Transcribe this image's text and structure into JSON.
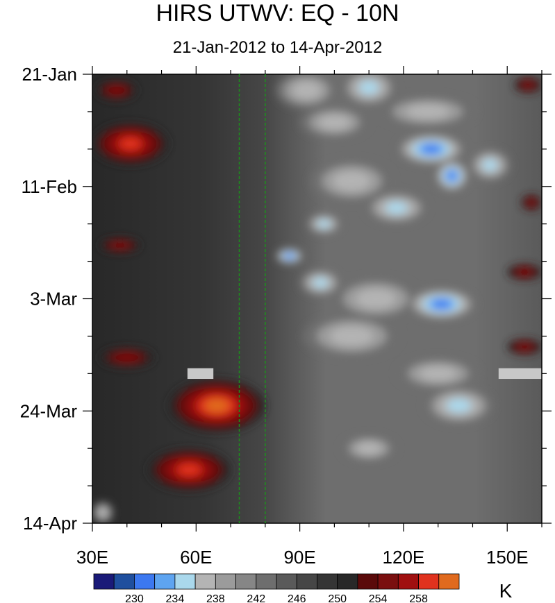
{
  "chart_data": {
    "type": "heatmap",
    "title": "HIRS UTWV: EQ - 10N",
    "subtitle": "21-Jan-2012 to 14-Apr-2012",
    "x_ticks": [
      {
        "label": "30E",
        "value": 30
      },
      {
        "label": "60E",
        "value": 60
      },
      {
        "label": "90E",
        "value": 90
      },
      {
        "label": "120E",
        "value": 120
      },
      {
        "label": "150E",
        "value": 150
      }
    ],
    "xlim": [
      30,
      160
    ],
    "y_ticks": [
      {
        "label": "21-Jan",
        "value": 0
      },
      {
        "label": "11-Feb",
        "value": 21
      },
      {
        "label": "3-Mar",
        "value": 42
      },
      {
        "label": "24-Mar",
        "value": 63
      },
      {
        "label": "14-Apr",
        "value": 84
      }
    ],
    "ylim_days": [
      0,
      84
    ],
    "reference_lines_lon": [
      72.5,
      80
    ],
    "colorbar": {
      "unit": "K",
      "levels": [
        228,
        230,
        232,
        234,
        236,
        238,
        240,
        242,
        244,
        246,
        248,
        250,
        252,
        254,
        256,
        258,
        260
      ],
      "labels": [
        "230",
        "234",
        "238",
        "242",
        "246",
        "250",
        "254",
        "258"
      ],
      "colors": [
        "#1a1a78",
        "#1f4f9e",
        "#3c78f0",
        "#5ea4f0",
        "#aad8ec",
        "#b4b4b4",
        "#9b9b9b",
        "#868686",
        "#6e6e6e",
        "#5a5a5a",
        "#464646",
        "#353535",
        "#282828",
        "#5a0a0a",
        "#7a0f0f",
        "#a01010",
        "#e0321e",
        "#e06a1e"
      ]
    },
    "features": [
      {
        "type": "moist",
        "lon": 92,
        "day": 3,
        "rlon": 9,
        "rday": 3.5,
        "t": 236
      },
      {
        "type": "moist",
        "lon": 110,
        "day": 2.5,
        "rlon": 8,
        "rday": 3.5,
        "t": 234
      },
      {
        "type": "moist",
        "lon": 100,
        "day": 9,
        "rlon": 10,
        "rday": 3,
        "t": 236
      },
      {
        "type": "moist",
        "lon": 127,
        "day": 7,
        "rlon": 14,
        "rday": 3,
        "t": 236
      },
      {
        "type": "moist",
        "lon": 128,
        "day": 14,
        "rlon": 10,
        "rday": 3,
        "t": 231
      },
      {
        "type": "moist",
        "lon": 134,
        "day": 19,
        "rlon": 5,
        "rday": 3,
        "t": 231
      },
      {
        "type": "moist",
        "lon": 105,
        "day": 20,
        "rlon": 12,
        "rday": 4,
        "t": 236
      },
      {
        "type": "moist",
        "lon": 145,
        "day": 17,
        "rlon": 6,
        "rday": 3,
        "t": 234
      },
      {
        "type": "moist",
        "lon": 118,
        "day": 25,
        "rlon": 9,
        "rday": 3,
        "t": 234
      },
      {
        "type": "moist",
        "lon": 97,
        "day": 28,
        "rlon": 5,
        "rday": 2,
        "t": 234
      },
      {
        "type": "moist",
        "lon": 87,
        "day": 34,
        "rlon": 4,
        "rday": 1.5,
        "t": 230
      },
      {
        "type": "moist",
        "lon": 96,
        "day": 39,
        "rlon": 6,
        "rday": 2.5,
        "t": 234
      },
      {
        "type": "moist",
        "lon": 112,
        "day": 42,
        "rlon": 13,
        "rday": 4,
        "t": 236
      },
      {
        "type": "moist",
        "lon": 131,
        "day": 43,
        "rlon": 10,
        "rday": 3,
        "t": 231
      },
      {
        "type": "moist",
        "lon": 105,
        "day": 49,
        "rlon": 14,
        "rday": 4,
        "t": 236
      },
      {
        "type": "moist",
        "lon": 130,
        "day": 56,
        "rlon": 12,
        "rday": 3,
        "t": 236
      },
      {
        "type": "moist",
        "lon": 136,
        "day": 62,
        "rlon": 10,
        "rday": 3.5,
        "t": 234
      },
      {
        "type": "moist",
        "lon": 110,
        "day": 70,
        "rlon": 8,
        "rday": 2.5,
        "t": 237
      },
      {
        "type": "moist",
        "lon": 33,
        "day": 82,
        "rlon": 3,
        "rday": 2,
        "t": 237
      },
      {
        "type": "dry",
        "lon": 41,
        "day": 13,
        "rlon": 11,
        "rday": 4,
        "t": 258
      },
      {
        "type": "dry",
        "lon": 37,
        "day": 3,
        "rlon": 6,
        "rday": 2,
        "t": 255
      },
      {
        "type": "dry",
        "lon": 38,
        "day": 32,
        "rlon": 6,
        "rday": 1.5,
        "t": 254
      },
      {
        "type": "dry",
        "lon": 40,
        "day": 53,
        "rlon": 8,
        "rday": 2,
        "t": 255
      },
      {
        "type": "dry",
        "lon": 66,
        "day": 62,
        "rlon": 14,
        "rday": 5,
        "t": 260
      },
      {
        "type": "dry",
        "lon": 58,
        "day": 74,
        "rlon": 12,
        "rday": 4,
        "t": 258
      },
      {
        "type": "dry",
        "lon": 156,
        "day": 2,
        "rlon": 4,
        "rday": 1.5,
        "t": 254
      },
      {
        "type": "dry",
        "lon": 157,
        "day": 24,
        "rlon": 3,
        "rday": 1.5,
        "t": 254
      },
      {
        "type": "dry",
        "lon": 155,
        "day": 37,
        "rlon": 5,
        "rday": 1.5,
        "t": 254
      },
      {
        "type": "dry",
        "lon": 155,
        "day": 51,
        "rlon": 5,
        "rday": 1.5,
        "t": 254
      }
    ],
    "missing_data": [
      {
        "lon0": 57.5,
        "lon1": 65,
        "day0": 55,
        "day1": 57
      },
      {
        "lon0": 147.5,
        "lon1": 160,
        "day0": 55,
        "day1": 57
      }
    ]
  }
}
